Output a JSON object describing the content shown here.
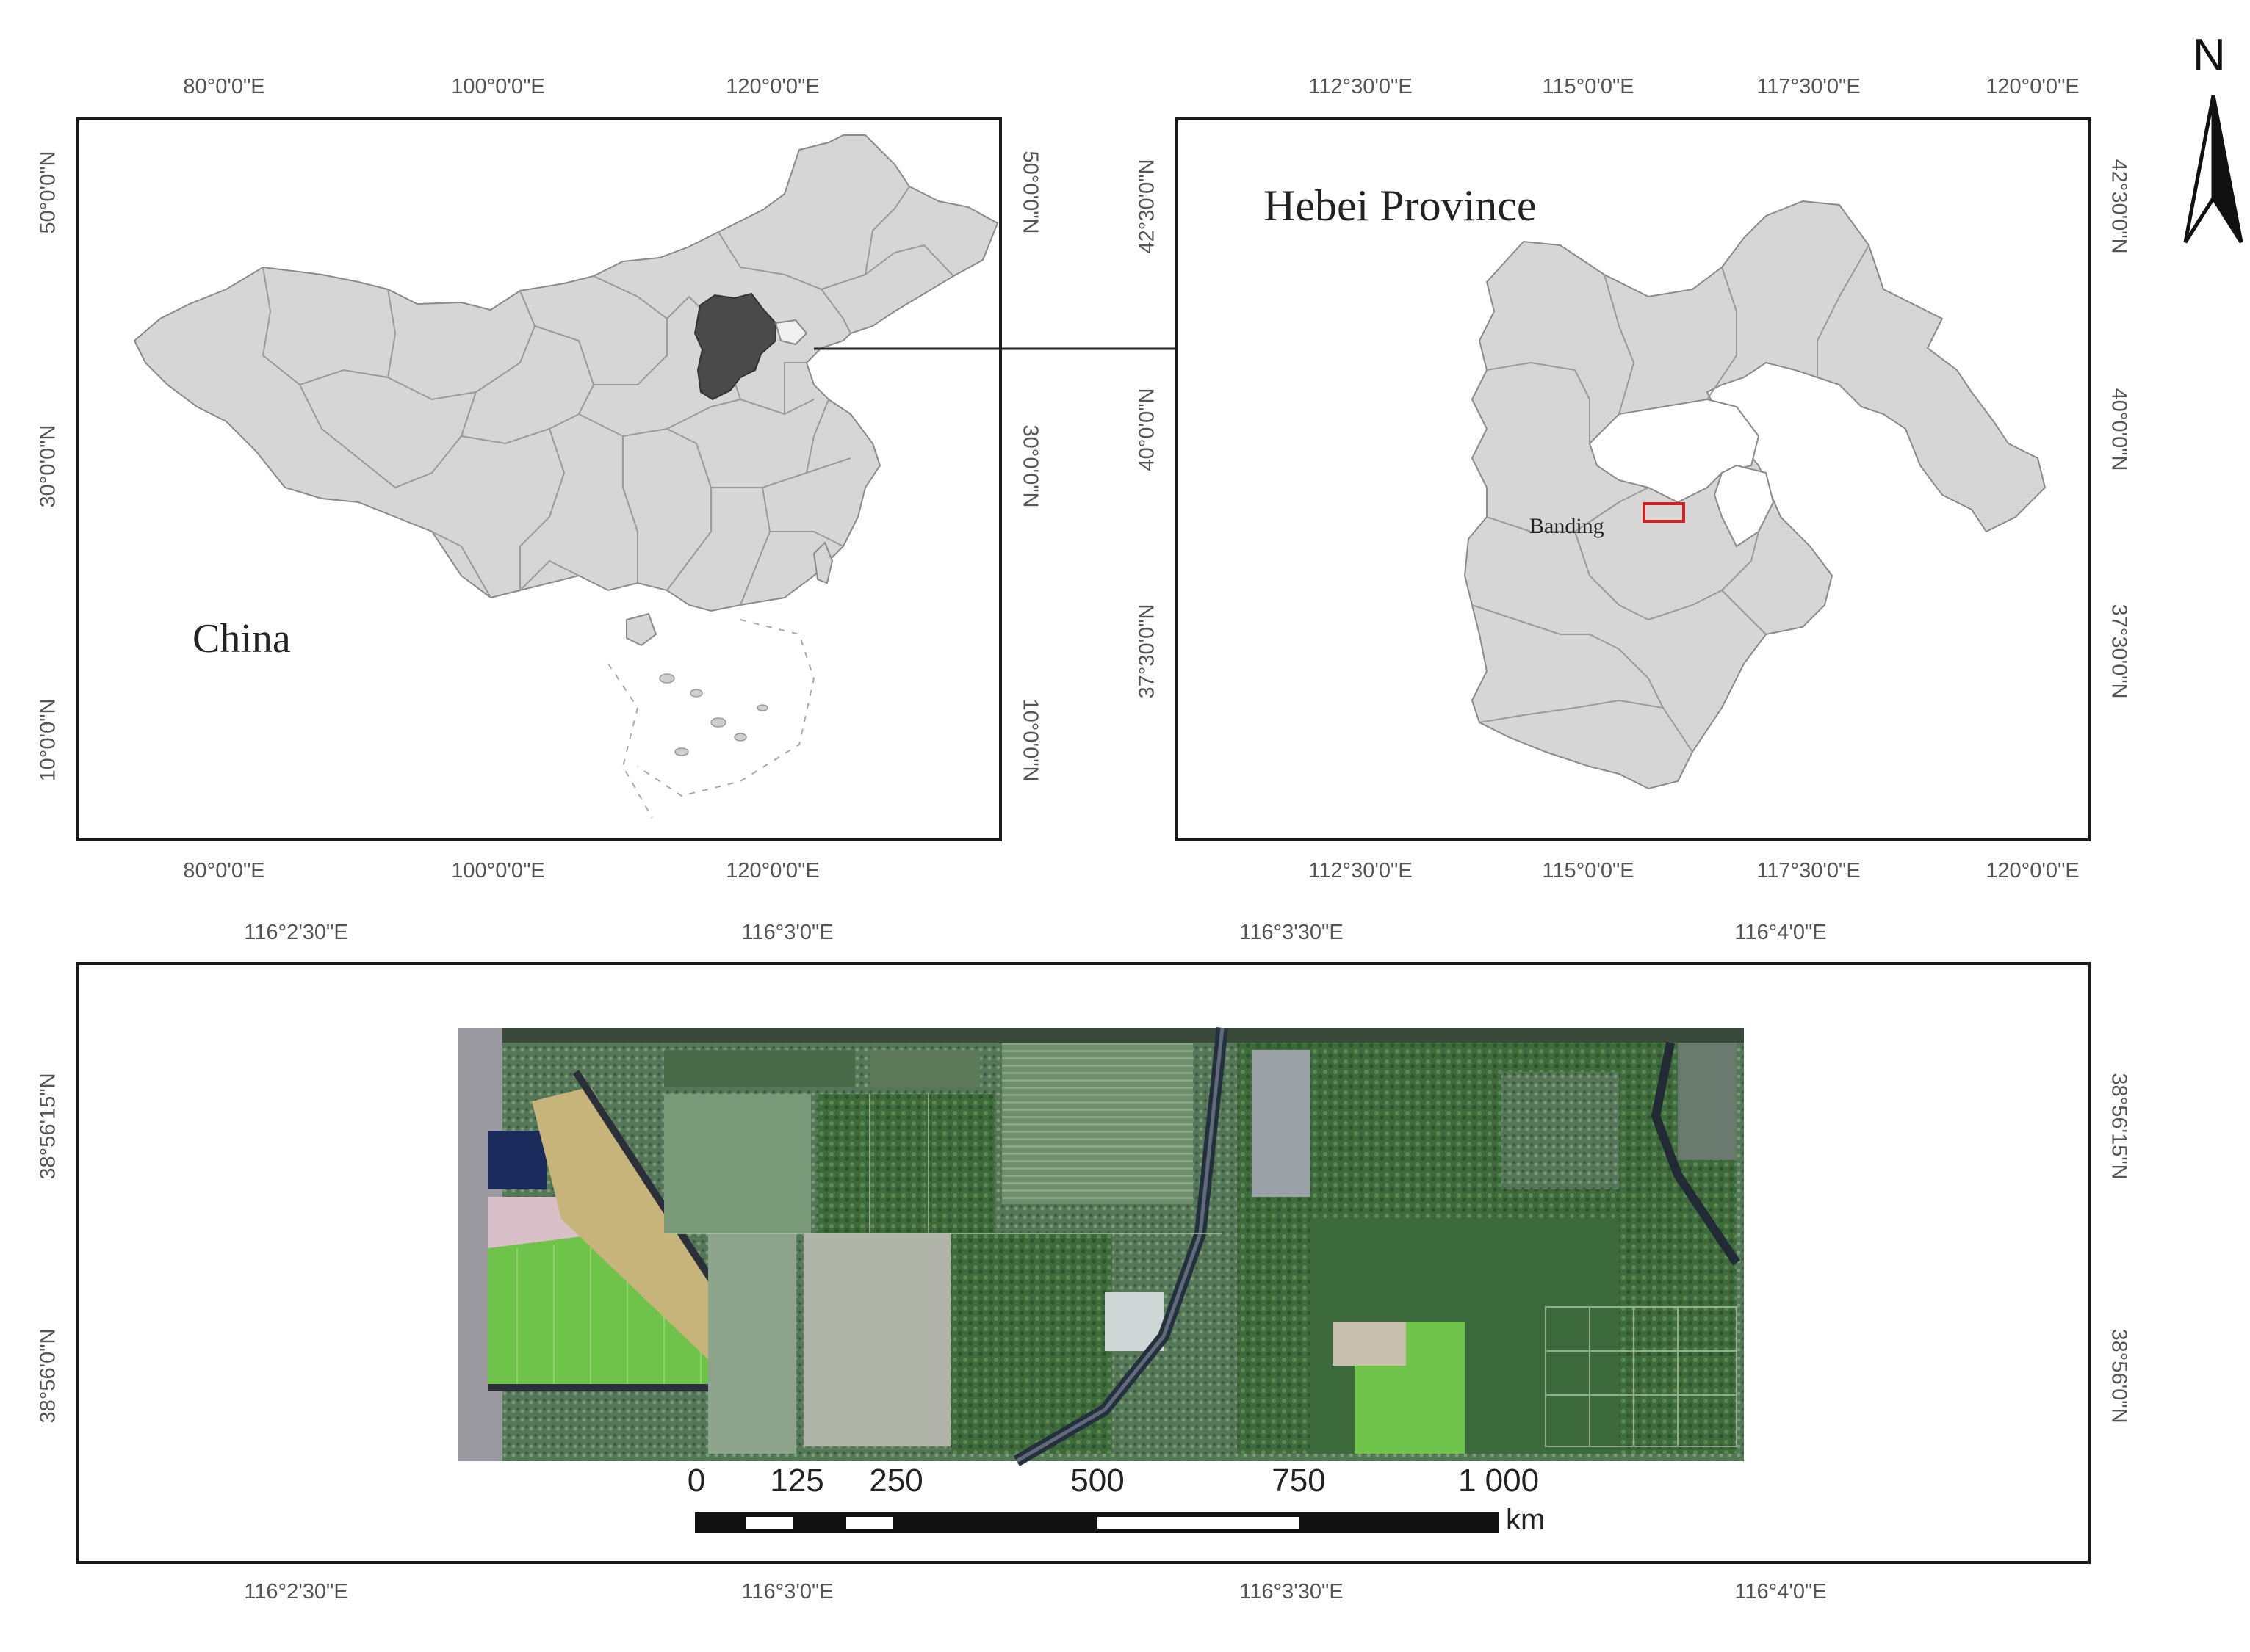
{
  "panels": {
    "china": {
      "label": "China",
      "top_ticks": [
        "80°0'0\"E",
        "100°0'0\"E",
        "120°0'0\"E"
      ],
      "bottom_ticks": [
        "80°0'0\"E",
        "100°0'0\"E",
        "120°0'0\"E"
      ],
      "left_ticks": [
        "50°0'0\"N",
        "30°0'0\"N",
        "10°0'0\"N"
      ],
      "right_ticks": [
        "50°0'0\"N",
        "30°0'0\"N",
        "10°0'0\"N"
      ],
      "land_color": "#d6d6d6",
      "highlight_color": "#4a4a4a"
    },
    "hebei": {
      "label": "Hebei Province",
      "study_area_label": "Banding",
      "top_ticks": [
        "112°30'0\"E",
        "115°0'0\"E",
        "117°30'0\"E",
        "120°0'0\"E"
      ],
      "bottom_ticks": [
        "112°30'0\"E",
        "115°0'0\"E",
        "117°30'0\"E",
        "120°0'0\"E"
      ],
      "left_ticks": [
        "42°30'0\"N",
        "40°0'0\"N",
        "37°30'0\"N"
      ],
      "right_ticks": [
        "42°30'0\"N",
        "40°0'0\"N",
        "37°30'0\"N"
      ],
      "study_area_color": "#cc2222"
    },
    "imagery": {
      "top_ticks": [
        "116°2'30\"E",
        "116°3'0\"E",
        "116°3'30\"E",
        "116°4'0\"E"
      ],
      "bottom_ticks": [
        "116°2'30\"E",
        "116°3'0\"E",
        "116°3'30\"E",
        "116°4'0\"E"
      ],
      "left_ticks": [
        "38°56'15\"N",
        "38°56'0\"N"
      ],
      "right_ticks": [
        "38°56'15\"N",
        "38°56'0\"N"
      ]
    }
  },
  "north_arrow": {
    "label": "N"
  },
  "scale_bar": {
    "labels": [
      "0",
      "125",
      "250",
      "500",
      "750",
      "1 000"
    ],
    "unit": "km"
  }
}
